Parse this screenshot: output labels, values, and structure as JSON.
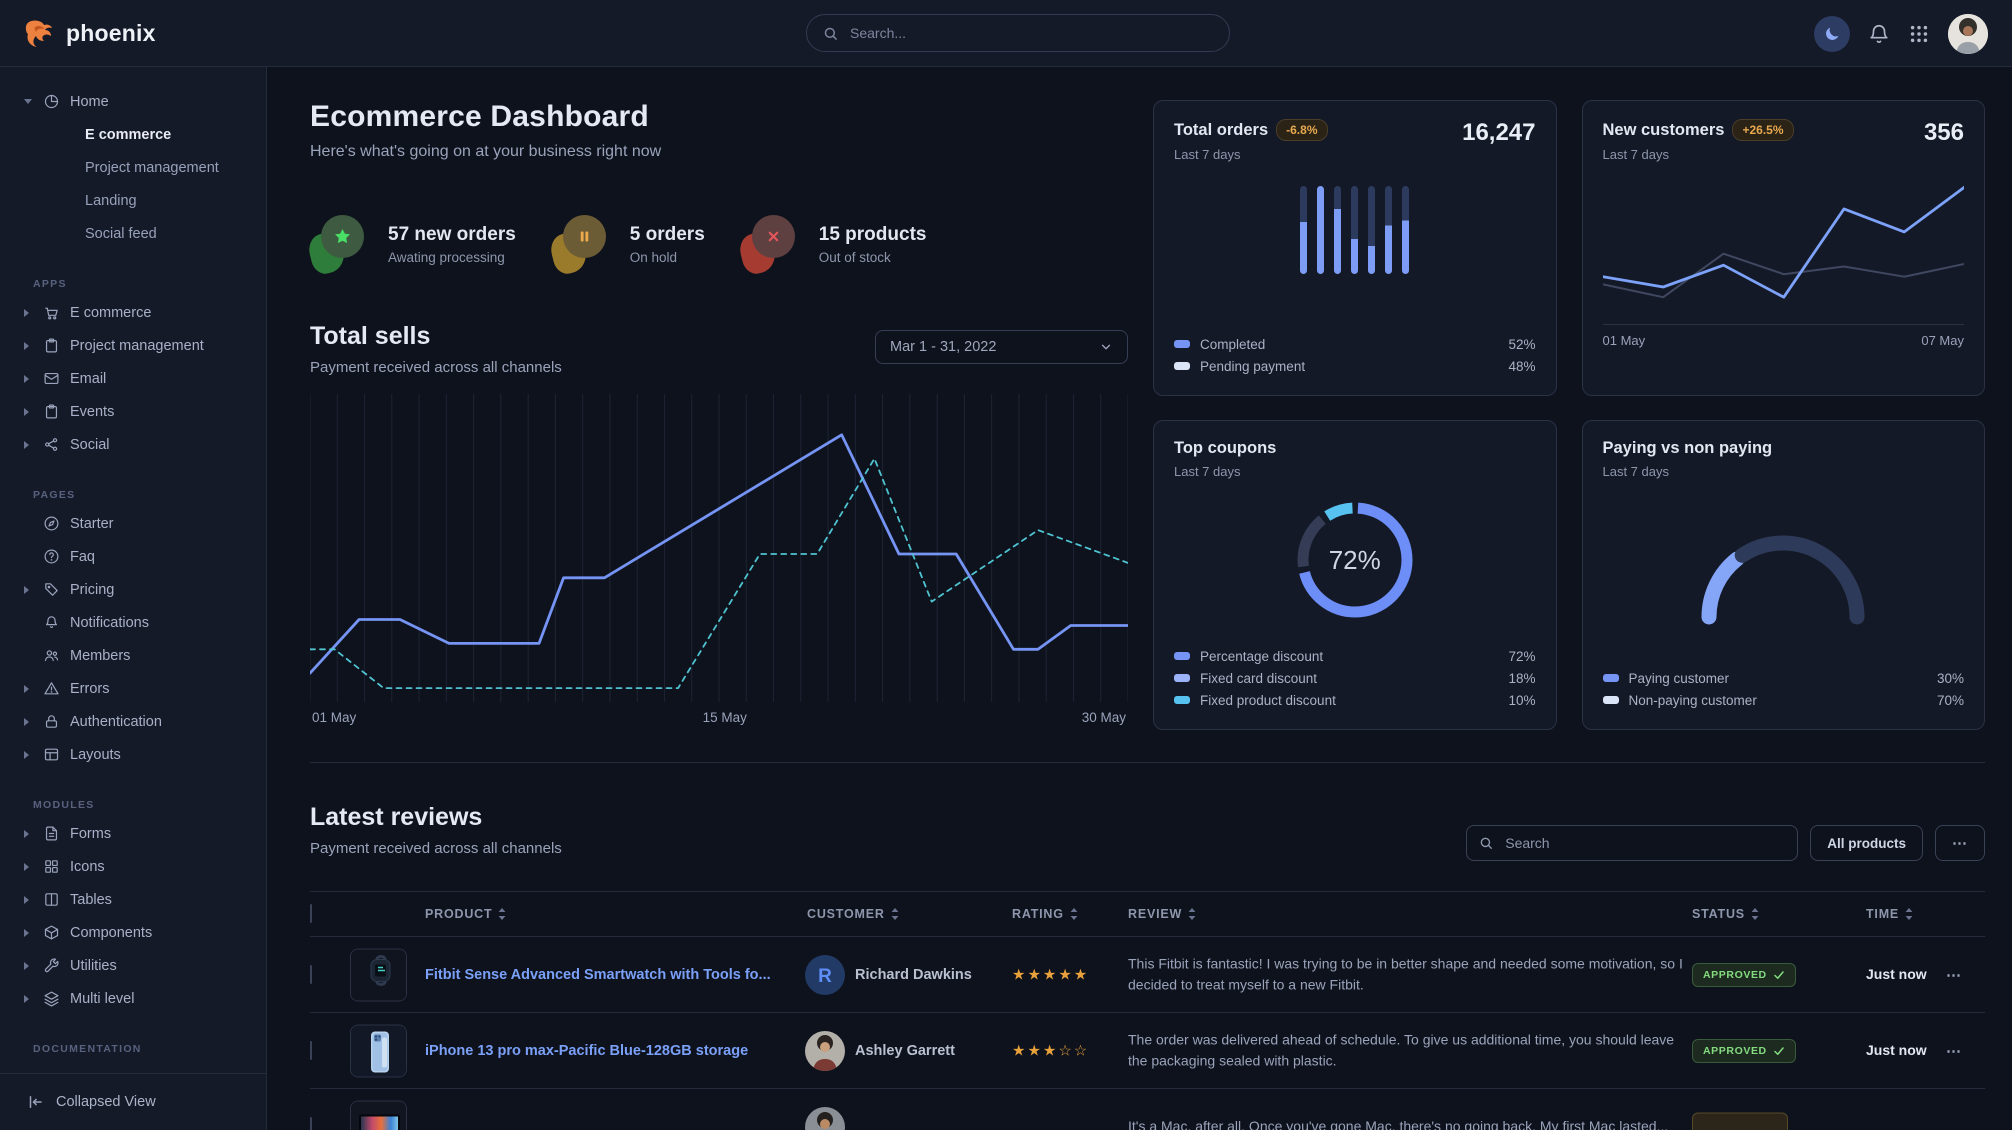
{
  "navbar": {
    "brand": "phoenix",
    "search_placeholder": "Search...",
    "icons": {
      "theme": "moon-icon",
      "notifications": "bell-icon",
      "apps": "grid-icon",
      "search": "search-icon",
      "profile": "avatar"
    }
  },
  "sidebar": {
    "home": {
      "label": "Home",
      "icon": "pie-chart",
      "expanded": true,
      "children": [
        {
          "label": "E commerce",
          "active": true
        },
        {
          "label": "Project management",
          "active": false
        },
        {
          "label": "Landing",
          "active": false
        },
        {
          "label": "Social feed",
          "active": false
        }
      ]
    },
    "sections": [
      {
        "label": "APPS",
        "items": [
          {
            "label": "E commerce",
            "icon": "cart",
            "caret": true
          },
          {
            "label": "Project management",
            "icon": "clipboard",
            "caret": true
          },
          {
            "label": "Email",
            "icon": "envelope",
            "caret": true
          },
          {
            "label": "Events",
            "icon": "clipboard",
            "caret": true
          },
          {
            "label": "Social",
            "icon": "share",
            "caret": true
          }
        ]
      },
      {
        "label": "PAGES",
        "items": [
          {
            "label": "Starter",
            "icon": "compass",
            "caret": false
          },
          {
            "label": "Faq",
            "icon": "help-circle",
            "caret": false
          },
          {
            "label": "Pricing",
            "icon": "tag",
            "caret": true
          },
          {
            "label": "Notifications",
            "icon": "bell",
            "caret": false
          },
          {
            "label": "Members",
            "icon": "users",
            "caret": false
          },
          {
            "label": "Errors",
            "icon": "alert-triangle",
            "caret": true
          },
          {
            "label": "Authentication",
            "icon": "lock",
            "caret": true
          },
          {
            "label": "Layouts",
            "icon": "layout",
            "caret": true
          }
        ]
      },
      {
        "label": "MODULES",
        "items": [
          {
            "label": "Forms",
            "icon": "file-text",
            "caret": true
          },
          {
            "label": "Icons",
            "icon": "grid",
            "caret": true
          },
          {
            "label": "Tables",
            "icon": "columns",
            "caret": true
          },
          {
            "label": "Components",
            "icon": "package",
            "caret": true
          },
          {
            "label": "Utilities",
            "icon": "wrench",
            "caret": true
          },
          {
            "label": "Multi level",
            "icon": "layers",
            "caret": true
          }
        ]
      },
      {
        "label": "DOCUMENTATION",
        "items": []
      }
    ],
    "footer": {
      "label": "Collapsed View",
      "icon": "collapse-left"
    }
  },
  "page": {
    "title": "Ecommerce Dashboard",
    "subtitle": "Here's what's going on at your business right now"
  },
  "stats": [
    {
      "title": "57 new orders",
      "subtitle": "Awating processing",
      "icon": "star",
      "type": "success"
    },
    {
      "title": "5 orders",
      "subtitle": "On hold",
      "icon": "pause",
      "type": "warning"
    },
    {
      "title": "15 products",
      "subtitle": "Out of stock",
      "icon": "x",
      "type": "danger"
    }
  ],
  "total_sells": {
    "title": "Total sells",
    "subtitle": "Payment received across all channels",
    "date_range": "Mar 1 - 31, 2022",
    "chart_data": {
      "type": "line",
      "x_ticks": [
        "01 May",
        "15 May",
        "30 May"
      ],
      "gridlines": 31,
      "series": [
        {
          "name": "sells-current",
          "color": "#7594f4",
          "style": "solid",
          "points": [
            [
              0,
              92
            ],
            [
              6,
              74
            ],
            [
              11,
              74
            ],
            [
              17,
              82
            ],
            [
              28,
              82
            ],
            [
              31,
              60
            ],
            [
              36,
              60
            ],
            [
              65,
              12
            ],
            [
              72,
              52
            ],
            [
              79,
              52
            ],
            [
              86,
              84
            ],
            [
              89,
              84
            ],
            [
              93,
              76
            ],
            [
              100,
              76
            ]
          ]
        },
        {
          "name": "sells-compare",
          "color": "#4fc3d0",
          "style": "dashed",
          "points": [
            [
              0,
              84
            ],
            [
              3,
              84
            ],
            [
              9,
              97
            ],
            [
              45,
              97
            ],
            [
              55,
              52
            ],
            [
              62,
              52
            ],
            [
              69,
              20
            ],
            [
              76,
              68
            ],
            [
              89,
              44
            ],
            [
              100,
              55
            ]
          ]
        }
      ]
    }
  },
  "cards": {
    "total_orders": {
      "title": "Total orders",
      "badge": "-6.8%",
      "period": "Last 7 days",
      "value": "16,247",
      "chart_data": {
        "type": "bar",
        "bars": 7,
        "completed_fraction": [
          0.59,
          1.0,
          0.74,
          0.4,
          0.32,
          0.55,
          0.61
        ]
      },
      "legend": [
        {
          "label": "Completed",
          "value": "52%",
          "color": "#7594f4"
        },
        {
          "label": "Pending payment",
          "value": "48%",
          "color": "#dbe5f8"
        }
      ]
    },
    "new_customers": {
      "title": "New customers",
      "badge": "+26.5%",
      "period": "Last 7 days",
      "value": "356",
      "chart_data": {
        "type": "line",
        "x_ticks": [
          "01 May",
          "07 May"
        ],
        "series": [
          {
            "name": "previous",
            "color": "#3f4860",
            "values": [
              80,
              90,
              56,
              72,
              66,
              74,
              64
            ]
          },
          {
            "name": "current",
            "color": "#7da2f9",
            "values": [
              74,
              82,
              65,
              90,
              21,
              39,
              4
            ]
          }
        ]
      }
    },
    "top_coupons": {
      "title": "Top coupons",
      "period": "Last 7 days",
      "center_value": "72%",
      "chart_data": {
        "type": "donut",
        "segments": [
          {
            "label": "Percentage discount",
            "pct": 72,
            "color": "#6d8ef7"
          },
          {
            "label": "Fixed card discount",
            "pct": 18,
            "color": "#343d55"
          },
          {
            "label": "Fixed product discount",
            "pct": 10,
            "color": "#57c2f0"
          }
        ]
      },
      "legend": [
        {
          "label": "Percentage discount",
          "value": "72%",
          "color": "#7594f4"
        },
        {
          "label": "Fixed card discount",
          "value": "18%",
          "color": "#9db3f9"
        },
        {
          "label": "Fixed product discount",
          "value": "10%",
          "color": "#57c2f0"
        }
      ]
    },
    "paying": {
      "title": "Paying vs non paying",
      "period": "Last 7 days",
      "chart_data": {
        "type": "gauge",
        "segments": [
          {
            "label": "Paying customer",
            "pct": 30,
            "color": "#85a5f7"
          },
          {
            "label": "Non-paying customer",
            "pct": 70,
            "color": "#2e3a59"
          }
        ]
      },
      "legend": [
        {
          "label": "Paying customer",
          "value": "30%",
          "color": "#7594f4"
        },
        {
          "label": "Non-paying customer",
          "value": "70%",
          "color": "#dbe5f8"
        }
      ]
    }
  },
  "reviews": {
    "title": "Latest reviews",
    "subtitle": "Payment received across all channels",
    "search_placeholder": "Search",
    "filter_button": "All products",
    "more_button": "⋯",
    "row_action": "⋯",
    "columns": [
      "PRODUCT",
      "CUSTOMER",
      "RATING",
      "REVIEW",
      "STATUS",
      "TIME"
    ],
    "rows": [
      {
        "product": "Fitbit Sense Advanced Smartwatch with Tools fo...",
        "thumb": "fitbit-watch",
        "customer": "Richard Dawkins",
        "avatar": "initial-R",
        "rating": 5,
        "review": "This Fitbit is fantastic! I was trying to be in better shape and needed some motivation, so I decided to treat myself to a new Fitbit.",
        "status": "APPROVED",
        "status_type": "success",
        "time": "Just now"
      },
      {
        "product": "iPhone 13 pro max-Pacific Blue-128GB storage",
        "thumb": "iphone-blue",
        "customer": "Ashley Garrett",
        "avatar": "photo-woman",
        "rating": 3,
        "review": "The order was delivered ahead of schedule. To give us additional time, you should leave the packaging sealed with plastic.",
        "status": "APPROVED",
        "status_type": "success",
        "time": "Just now"
      },
      {
        "product": "",
        "thumb": "macbook-colorful",
        "customer": "",
        "avatar": "photo-man",
        "rating": 0,
        "review": "It's a Mac, after all. Once you've gone Mac, there's no going back. My first Mac lasted...",
        "status": "",
        "status_type": "warning",
        "time": ""
      }
    ]
  }
}
